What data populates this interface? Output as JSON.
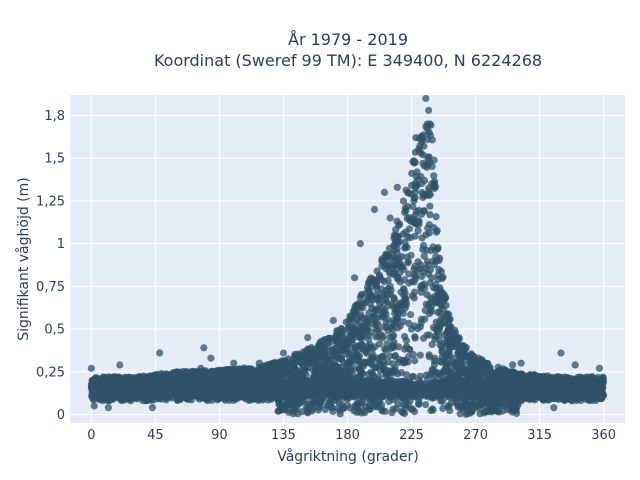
{
  "chart_data": {
    "type": "scatter",
    "title_line1": "År 1979 - 2019",
    "title_line2": "Koordinat (Sweref 99 TM): E 349400, N 6224268",
    "xlabel": "Vågriktning (grader)",
    "ylabel": "Signifikant våghöjd (m)",
    "xlim": [
      -15,
      375
    ],
    "ylim": [
      -0.05,
      1.87
    ],
    "xticks": [
      0,
      45,
      90,
      135,
      180,
      225,
      270,
      315,
      360
    ],
    "xtick_labels": [
      "0",
      "45",
      "90",
      "135",
      "180",
      "225",
      "270",
      "315",
      "360"
    ],
    "yticks": [
      0,
      0.25,
      0.5,
      0.75,
      1,
      1.25,
      1.5,
      1.75
    ],
    "ytick_labels": [
      "0",
      "0,25",
      "0,5",
      "0,75",
      "1",
      "1,25",
      "1,5",
      "1,8"
    ],
    "grid": true,
    "legend": "none",
    "colors": {
      "marker": "#2e5369",
      "plot_bg": "#e5ecf6",
      "grid": "#ffffff"
    },
    "envelope": {
      "direction": [
        0,
        30,
        60,
        90,
        120,
        140,
        160,
        180,
        195,
        210,
        220,
        228,
        233,
        237,
        240,
        245,
        250,
        260,
        270,
        285,
        300,
        330,
        360
      ],
      "max_height": [
        0.22,
        0.22,
        0.25,
        0.26,
        0.28,
        0.34,
        0.42,
        0.55,
        0.78,
        1.0,
        1.28,
        1.55,
        1.72,
        1.85,
        1.6,
        0.95,
        0.62,
        0.42,
        0.34,
        0.28,
        0.24,
        0.22,
        0.22
      ],
      "min_height": 0.08
    },
    "outliers": [
      {
        "x": 0,
        "y": 0.27
      },
      {
        "x": 2,
        "y": 0.05
      },
      {
        "x": 12,
        "y": 0.04
      },
      {
        "x": 20,
        "y": 0.29
      },
      {
        "x": 48,
        "y": 0.36
      },
      {
        "x": 43,
        "y": 0.04
      },
      {
        "x": 77,
        "y": 0.27
      },
      {
        "x": 79,
        "y": 0.39
      },
      {
        "x": 84,
        "y": 0.33
      },
      {
        "x": 100,
        "y": 0.3
      },
      {
        "x": 118,
        "y": 0.3
      },
      {
        "x": 135,
        "y": 0.36
      },
      {
        "x": 152,
        "y": 0.45
      },
      {
        "x": 170,
        "y": 0.55
      },
      {
        "x": 185,
        "y": 0.8
      },
      {
        "x": 189,
        "y": 1.0
      },
      {
        "x": 199,
        "y": 1.2
      },
      {
        "x": 206,
        "y": 1.3
      },
      {
        "x": 210,
        "y": 1.15
      },
      {
        "x": 215,
        "y": 1.33
      },
      {
        "x": 226,
        "y": 1.48
      },
      {
        "x": 228,
        "y": 1.62
      },
      {
        "x": 235,
        "y": 1.85
      },
      {
        "x": 237,
        "y": 1.78
      },
      {
        "x": 238,
        "y": 1.7
      },
      {
        "x": 262,
        "y": 0.38
      },
      {
        "x": 272,
        "y": 0.33
      },
      {
        "x": 280,
        "y": 0.27
      },
      {
        "x": 296,
        "y": 0.29
      },
      {
        "x": 302,
        "y": 0.3
      },
      {
        "x": 330,
        "y": 0.36
      },
      {
        "x": 340,
        "y": 0.29
      },
      {
        "x": 338,
        "y": 0.08
      },
      {
        "x": 357,
        "y": 0.27
      },
      {
        "x": 325,
        "y": 0.04
      }
    ]
  }
}
